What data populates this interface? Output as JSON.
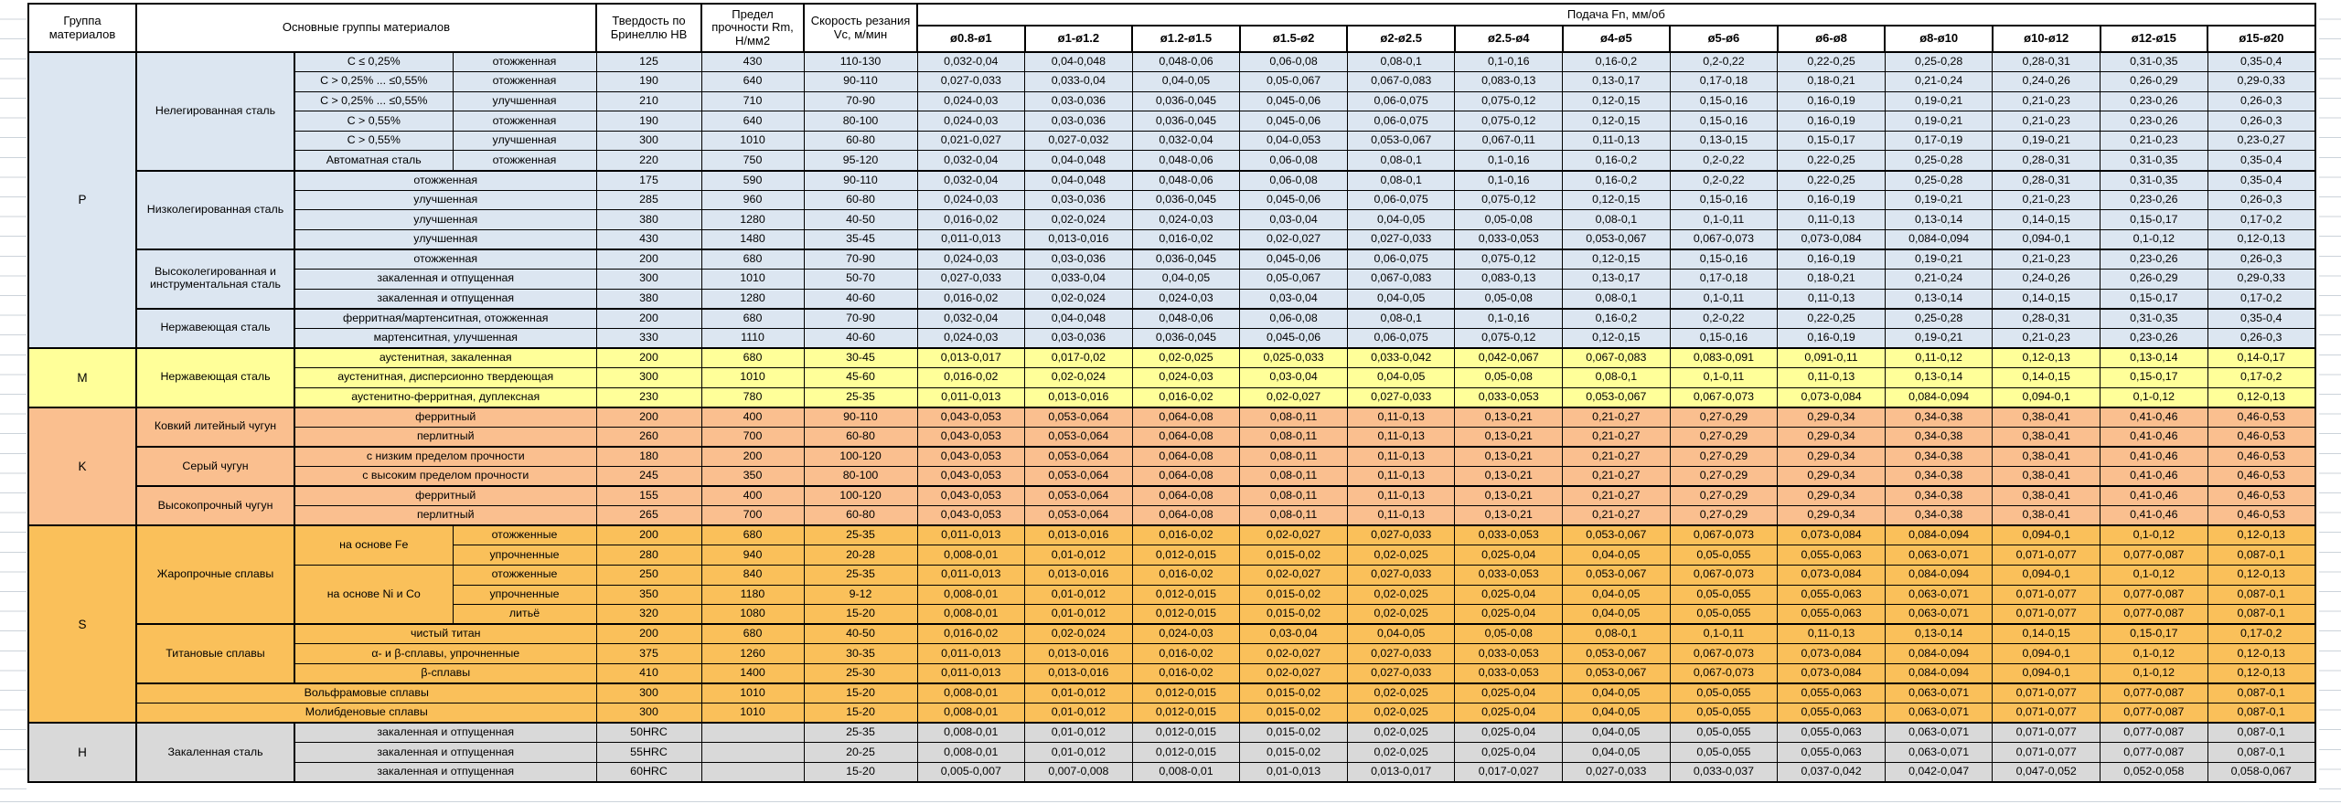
{
  "header": {
    "group_col": "Группа материалов",
    "materials_col": "Основные группы материалов",
    "hardness_col": "Твердость по Бринеллю HB",
    "strength_col": "Предел прочности Rm, Н/мм2",
    "speed_col": "Скорость резания Vc, м/мин",
    "feed_col": "Подача Fn, мм/об",
    "diameters": [
      "ø0.8-ø1",
      "ø1-ø1.2",
      "ø1.2-ø1.5",
      "ø1.5-ø2",
      "ø2-ø2.5",
      "ø2.5-ø4",
      "ø4-ø5",
      "ø5-ø6",
      "ø6-ø8",
      "ø8-ø10",
      "ø10-ø12",
      "ø12-ø15",
      "ø15-ø20"
    ]
  },
  "gridline_color": "#ccd3da",
  "feed_patterns": {
    "A": [
      "0,032-0,04",
      "0,04-0,048",
      "0,048-0,06",
      "0,06-0,08",
      "0,08-0,1",
      "0,1-0,16",
      "0,16-0,2",
      "0,2-0,22",
      "0,22-0,25",
      "0,25-0,28",
      "0,28-0,31",
      "0,31-0,35",
      "0,35-0,4"
    ],
    "B": [
      "0,027-0,033",
      "0,033-0,04",
      "0,04-0,05",
      "0,05-0,067",
      "0,067-0,083",
      "0,083-0,13",
      "0,13-0,17",
      "0,17-0,18",
      "0,18-0,21",
      "0,21-0,24",
      "0,24-0,26",
      "0,26-0,29",
      "0,29-0,33"
    ],
    "C": [
      "0,024-0,03",
      "0,03-0,036",
      "0,036-0,045",
      "0,045-0,06",
      "0,06-0,075",
      "0,075-0,12",
      "0,12-0,15",
      "0,15-0,16",
      "0,16-0,19",
      "0,19-0,21",
      "0,21-0,23",
      "0,23-0,26",
      "0,26-0,3"
    ],
    "D": [
      "0,021-0,027",
      "0,027-0,032",
      "0,032-0,04",
      "0,04-0,053",
      "0,053-0,067",
      "0,067-0,11",
      "0,11-0,13",
      "0,13-0,15",
      "0,15-0,17",
      "0,17-0,19",
      "0,19-0,21",
      "0,21-0,23",
      "0,23-0,27"
    ],
    "E": [
      "0,016-0,02",
      "0,02-0,024",
      "0,024-0,03",
      "0,03-0,04",
      "0,04-0,05",
      "0,05-0,08",
      "0,08-0,1",
      "0,1-0,11",
      "0,11-0,13",
      "0,13-0,14",
      "0,14-0,15",
      "0,15-0,17",
      "0,17-0,2"
    ],
    "F": [
      "0,011-0,013",
      "0,013-0,016",
      "0,016-0,02",
      "0,02-0,027",
      "0,027-0,033",
      "0,033-0,053",
      "0,053-0,067",
      "0,067-0,073",
      "0,073-0,084",
      "0,084-0,094",
      "0,094-0,1",
      "0,1-0,12",
      "0,12-0,13"
    ],
    "G": [
      "0,013-0,017",
      "0,017-0,02",
      "0,02-0,025",
      "0,025-0,033",
      "0,033-0,042",
      "0,042-0,067",
      "0,067-0,083",
      "0,083-0,091",
      "0,091-0,11",
      "0,11-0,12",
      "0,12-0,13",
      "0,13-0,14",
      "0,14-0,17"
    ],
    "K": [
      "0,043-0,053",
      "0,053-0,064",
      "0,064-0,08",
      "0,08-0,11",
      "0,11-0,13",
      "0,13-0,21",
      "0,21-0,27",
      "0,27-0,29",
      "0,29-0,34",
      "0,34-0,38",
      "0,38-0,41",
      "0,41-0,46",
      "0,46-0,53"
    ],
    "H": [
      "0,008-0,01",
      "0,01-0,012",
      "0,012-0,015",
      "0,015-0,02",
      "0,02-0,025",
      "0,025-0,04",
      "0,04-0,05",
      "0,05-0,055",
      "0,055-0,063",
      "0,063-0,071",
      "0,071-0,077",
      "0,077-0,087",
      "0,087-0,1"
    ],
    "L": [
      "0,005-0,007",
      "0,007-0,008",
      "0,008-0,01",
      "0,01-0,013",
      "0,013-0,017",
      "0,017-0,027",
      "0,027-0,033",
      "0,033-0,037",
      "0,037-0,042",
      "0,042-0,047",
      "0,047-0,052",
      "0,052-0,058",
      "0,058-0,067"
    ]
  },
  "groups": [
    {
      "letter": "P",
      "color": "#DCE6F1",
      "blocks": [
        {
          "material": "Нелегированная сталь",
          "rows": [
            {
              "sub": "C ≤ 0,25%",
              "treat": "отожженная",
              "hb": "125",
              "rm": "430",
              "vc": "110-130",
              "f": "A"
            },
            {
              "sub": "C > 0,25% ... ≤0,55%",
              "treat": "отожженная",
              "hb": "190",
              "rm": "640",
              "vc": "90-110",
              "f": "B"
            },
            {
              "sub": "C > 0,25% ... ≤0,55%",
              "treat": "улучшенная",
              "hb": "210",
              "rm": "710",
              "vc": "70-90",
              "f": "C"
            },
            {
              "sub": "C > 0,55%",
              "treat": "отожженная",
              "hb": "190",
              "rm": "640",
              "vc": "80-100",
              "f": "C"
            },
            {
              "sub": "C > 0,55%",
              "treat": "улучшенная",
              "hb": "300",
              "rm": "1010",
              "vc": "60-80",
              "f": "D"
            },
            {
              "sub": "Автоматная сталь",
              "treat": "отожженная",
              "hb": "220",
              "rm": "750",
              "vc": "95-120",
              "f": "A"
            }
          ]
        },
        {
          "material": "Низколегированная сталь",
          "rows": [
            {
              "label": "отожженная",
              "span": 2,
              "hb": "175",
              "rm": "590",
              "vc": "90-110",
              "f": "A"
            },
            {
              "label": "улучшенная",
              "span": 2,
              "hb": "285",
              "rm": "960",
              "vc": "60-80",
              "f": "C"
            },
            {
              "label": "улучшенная",
              "span": 2,
              "hb": "380",
              "rm": "1280",
              "vc": "40-50",
              "f": "E"
            },
            {
              "label": "улучшенная",
              "span": 2,
              "hb": "430",
              "rm": "1480",
              "vc": "35-45",
              "f": "F"
            }
          ]
        },
        {
          "material": "Высоколегированная и инструментальная сталь",
          "rows": [
            {
              "label": "отожженная",
              "span": 2,
              "hb": "200",
              "rm": "680",
              "vc": "70-90",
              "f": "C"
            },
            {
              "label": "закаленная и отпущенная",
              "span": 2,
              "hb": "300",
              "rm": "1010",
              "vc": "50-70",
              "f": "B"
            },
            {
              "label": "закаленная и отпущенная",
              "span": 2,
              "hb": "380",
              "rm": "1280",
              "vc": "40-60",
              "f": "E"
            }
          ]
        },
        {
          "material": "Нержавеющая сталь",
          "rows": [
            {
              "label": "ферритная/мартенситная, отожженная",
              "span": 2,
              "hb": "200",
              "rm": "680",
              "vc": "70-90",
              "f": "A"
            },
            {
              "label": "мартенситная, улучшенная",
              "span": 2,
              "hb": "330",
              "rm": "1110",
              "vc": "40-60",
              "f": "C"
            }
          ]
        }
      ]
    },
    {
      "letter": "M",
      "color": "#FFFF99",
      "blocks": [
        {
          "material": "Нержавеющая сталь",
          "rows": [
            {
              "label": "аустенитная, закаленная",
              "span": 2,
              "hb": "200",
              "rm": "680",
              "vc": "30-45",
              "f": "G"
            },
            {
              "label": "аустенитная, дисперсионно твердеющая",
              "span": 2,
              "hb": "300",
              "rm": "1010",
              "vc": "45-60",
              "f": "E"
            },
            {
              "label": "аустенитно-ферритная, дуплексная",
              "span": 2,
              "hb": "230",
              "rm": "780",
              "vc": "25-35",
              "f": "F"
            }
          ]
        }
      ]
    },
    {
      "letter": "K",
      "color": "#FABF8F",
      "blocks": [
        {
          "material": "Ковкий литейный чугун",
          "rows": [
            {
              "label": "ферритный",
              "span": 2,
              "hb": "200",
              "rm": "400",
              "vc": "90-110",
              "f": "K"
            },
            {
              "label": "перлитный",
              "span": 2,
              "hb": "260",
              "rm": "700",
              "vc": "60-80",
              "f": "K"
            }
          ]
        },
        {
          "material": "Серый чугун",
          "rows": [
            {
              "label": "с низким пределом прочности",
              "span": 2,
              "hb": "180",
              "rm": "200",
              "vc": "100-120",
              "f": "K"
            },
            {
              "label": "с высоким пределом прочности",
              "span": 2,
              "hb": "245",
              "rm": "350",
              "vc": "80-100",
              "f": "K"
            }
          ]
        },
        {
          "material": "Высокопрочный чугун",
          "rows": [
            {
              "label": "ферритный",
              "span": 2,
              "hb": "155",
              "rm": "400",
              "vc": "100-120",
              "f": "K"
            },
            {
              "label": "перлитный",
              "span": 2,
              "hb": "265",
              "rm": "700",
              "vc": "60-80",
              "f": "K"
            }
          ]
        }
      ]
    },
    {
      "letter": "S",
      "color": "#FAC05A",
      "blocks": [
        {
          "material": "Жаропрочные сплавы",
          "rows": [
            {
              "sub": "на основе Fe",
              "subRowspan": 2,
              "treat": "отожженные",
              "hb": "200",
              "rm": "680",
              "vc": "25-35",
              "f": "F"
            },
            {
              "treat": "упрочненные",
              "hb": "280",
              "rm": "940",
              "vc": "20-28",
              "f": "H"
            },
            {
              "sub": "на основе Ni и Co",
              "subRowspan": 3,
              "treat": "отожженные",
              "hb": "250",
              "rm": "840",
              "vc": "25-35",
              "f": "F"
            },
            {
              "treat": "упрочненные",
              "hb": "350",
              "rm": "1180",
              "vc": "9-12",
              "f": "H"
            },
            {
              "treat": "литьё",
              "hb": "320",
              "rm": "1080",
              "vc": "15-20",
              "f": "H"
            }
          ]
        },
        {
          "material": "Титановые сплавы",
          "rows": [
            {
              "label": "чистый титан",
              "span": 2,
              "hb": "200",
              "rm": "680",
              "vc": "40-50",
              "f": "E"
            },
            {
              "label": "α- и β-сплавы, упрочненные",
              "span": 2,
              "hb": "375",
              "rm": "1260",
              "vc": "30-35",
              "f": "F"
            },
            {
              "label": "β-сплавы",
              "span": 2,
              "hb": "410",
              "rm": "1400",
              "vc": "25-30",
              "f": "F"
            }
          ]
        },
        {
          "material": null,
          "rows": [
            {
              "label": "Вольфрамовые сплавы",
              "span": 3,
              "hb": "300",
              "rm": "1010",
              "vc": "15-20",
              "f": "H"
            },
            {
              "label": "Молибденовые сплавы",
              "span": 3,
              "hb": "300",
              "rm": "1010",
              "vc": "15-20",
              "f": "H"
            }
          ]
        }
      ]
    },
    {
      "letter": "H",
      "color": "#D9D9D9",
      "blocks": [
        {
          "material": "Закаленная сталь",
          "rows": [
            {
              "label": "закаленная и отпущенная",
              "span": 2,
              "hb": "50HRC",
              "rm": "",
              "vc": "25-35",
              "f": "H"
            },
            {
              "label": "закаленная и отпущенная",
              "span": 2,
              "hb": "55HRC",
              "rm": "",
              "vc": "20-25",
              "f": "H"
            },
            {
              "label": "закаленная и отпущенная",
              "span": 2,
              "hb": "60HRC",
              "rm": "",
              "vc": "15-20",
              "f": "L"
            }
          ]
        }
      ]
    }
  ]
}
